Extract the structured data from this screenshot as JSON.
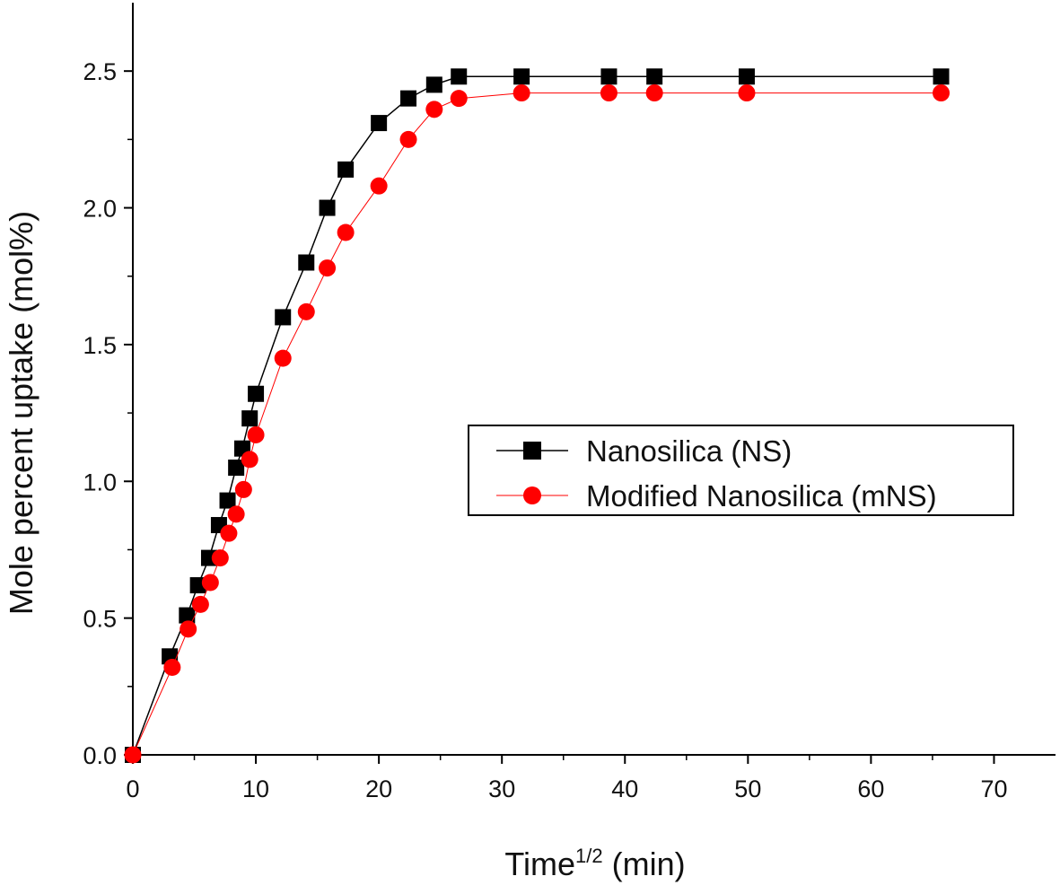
{
  "chart_data": {
    "type": "line",
    "title": "",
    "xlabel": "Time",
    "xlabel_superscript": "1/2",
    "xlabel_unit": " (min)",
    "ylabel": "Mole percent uptake (mol%)",
    "xlim": [
      0,
      75
    ],
    "ylim": [
      0,
      2.75
    ],
    "x_ticks": [
      0,
      10,
      20,
      30,
      40,
      50,
      60,
      70
    ],
    "y_ticks": [
      0.0,
      0.5,
      1.0,
      1.5,
      2.0,
      2.5
    ],
    "x_tick_labels": [
      "0",
      "10",
      "20",
      "30",
      "40",
      "50",
      "60",
      "70"
    ],
    "y_tick_labels": [
      "0.0",
      "0.5",
      "1.0",
      "1.5",
      "2.0",
      "2.5"
    ],
    "grid": false,
    "legend_position": "center-right",
    "series": [
      {
        "name": "Nanosilica (NS)",
        "marker": "square",
        "color": "#000000",
        "x": [
          0,
          3,
          4.4,
          5.3,
          6.2,
          7,
          7.7,
          8.4,
          8.9,
          9.5,
          10,
          12.2,
          14.1,
          15.8,
          17.3,
          20,
          22.4,
          24.5,
          26.5,
          31.6,
          38.7,
          42.4,
          49.9,
          65.7
        ],
        "y": [
          0,
          0.36,
          0.51,
          0.62,
          0.72,
          0.84,
          0.93,
          1.05,
          1.12,
          1.23,
          1.32,
          1.6,
          1.8,
          2.0,
          2.14,
          2.31,
          2.4,
          2.45,
          2.48,
          2.48,
          2.48,
          2.48,
          2.48,
          2.48
        ]
      },
      {
        "name": "Modified Nanosilica (mNS)",
        "marker": "circle",
        "color": "#ff0000",
        "x": [
          0,
          3.2,
          4.5,
          5.5,
          6.3,
          7.1,
          7.8,
          8.4,
          9,
          9.5,
          10,
          12.2,
          14.1,
          15.8,
          17.3,
          20,
          22.4,
          24.5,
          26.5,
          31.6,
          38.7,
          42.4,
          49.9,
          65.7
        ],
        "y": [
          0,
          0.32,
          0.46,
          0.55,
          0.63,
          0.72,
          0.81,
          0.88,
          0.97,
          1.08,
          1.17,
          1.45,
          1.62,
          1.78,
          1.91,
          2.08,
          2.25,
          2.36,
          2.4,
          2.42,
          2.42,
          2.42,
          2.42,
          2.42
        ]
      }
    ]
  }
}
